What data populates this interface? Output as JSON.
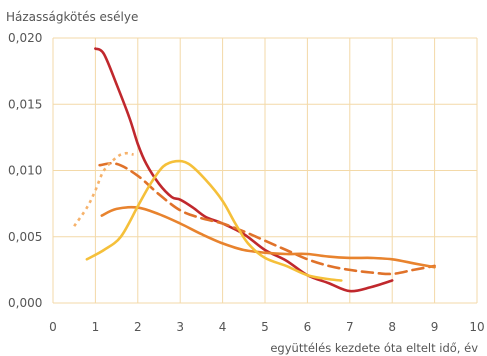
{
  "chart_data": {
    "type": "line",
    "title": "",
    "ylabel": "Házasságkötés esélye",
    "xlabel": "együttélés kezdete óta eltelt idő, év",
    "xlim": [
      0,
      10
    ],
    "ylim": [
      0,
      0.02
    ],
    "x_ticks": [
      0,
      1,
      2,
      3,
      4,
      5,
      6,
      7,
      8,
      9,
      10
    ],
    "y_ticks": [
      0,
      0.005,
      0.01,
      0.015,
      0.02
    ],
    "x_tick_labels": [
      "0",
      "1",
      "2",
      "3",
      "4",
      "5",
      "6",
      "7",
      "8",
      "9",
      "10"
    ],
    "y_tick_labels": [
      "0,000",
      "0,005",
      "0,010",
      "0,015",
      "0,020"
    ],
    "grid": {
      "vertical": true,
      "horizontal": true
    },
    "legend": "none",
    "series": [
      {
        "color": "#c0282d",
        "style": "solid",
        "points": [
          [
            1.0,
            0.0192
          ],
          [
            1.2,
            0.0188
          ],
          [
            1.5,
            0.0165
          ],
          [
            1.8,
            0.014
          ],
          [
            2.0,
            0.012
          ],
          [
            2.2,
            0.0105
          ],
          [
            2.5,
            0.009
          ],
          [
            2.8,
            0.008
          ],
          [
            3.0,
            0.0078
          ],
          [
            3.3,
            0.0072
          ],
          [
            3.6,
            0.0065
          ],
          [
            4.0,
            0.006
          ],
          [
            4.5,
            0.0052
          ],
          [
            5.0,
            0.004
          ],
          [
            5.5,
            0.0032
          ],
          [
            6.0,
            0.0021
          ],
          [
            6.5,
            0.0015
          ],
          [
            7.0,
            0.0009
          ],
          [
            7.5,
            0.0012
          ],
          [
            8.0,
            0.0017
          ]
        ]
      },
      {
        "color": "#e0722a",
        "style": "dashed",
        "points": [
          [
            1.1,
            0.0104
          ],
          [
            1.5,
            0.0105
          ],
          [
            2.0,
            0.0096
          ],
          [
            2.5,
            0.0082
          ],
          [
            3.0,
            0.007
          ],
          [
            3.5,
            0.0064
          ],
          [
            4.0,
            0.006
          ],
          [
            4.5,
            0.0054
          ],
          [
            5.0,
            0.0047
          ],
          [
            5.5,
            0.004
          ],
          [
            6.0,
            0.0033
          ],
          [
            6.5,
            0.0028
          ],
          [
            7.0,
            0.0025
          ],
          [
            7.5,
            0.0023
          ],
          [
            8.0,
            0.0022
          ],
          [
            8.5,
            0.0025
          ],
          [
            9.0,
            0.0028
          ]
        ]
      },
      {
        "color": "#e8832e",
        "style": "solid",
        "points": [
          [
            1.15,
            0.0066
          ],
          [
            1.5,
            0.0071
          ],
          [
            2.0,
            0.0072
          ],
          [
            2.5,
            0.0067
          ],
          [
            3.0,
            0.006
          ],
          [
            3.5,
            0.0052
          ],
          [
            4.0,
            0.0045
          ],
          [
            4.5,
            0.004
          ],
          [
            5.0,
            0.0038
          ],
          [
            5.5,
            0.0037
          ],
          [
            6.0,
            0.0037
          ],
          [
            6.5,
            0.0035
          ],
          [
            7.0,
            0.0034
          ],
          [
            7.5,
            0.0034
          ],
          [
            8.0,
            0.0033
          ],
          [
            8.5,
            0.003
          ],
          [
            9.0,
            0.0027
          ]
        ]
      },
      {
        "color": "#f5c03a",
        "style": "solid",
        "points": [
          [
            0.8,
            0.0033
          ],
          [
            1.2,
            0.004
          ],
          [
            1.6,
            0.005
          ],
          [
            2.0,
            0.0073
          ],
          [
            2.3,
            0.009
          ],
          [
            2.6,
            0.0103
          ],
          [
            2.9,
            0.0107
          ],
          [
            3.2,
            0.0105
          ],
          [
            3.6,
            0.0093
          ],
          [
            4.0,
            0.0077
          ],
          [
            4.3,
            0.006
          ],
          [
            4.6,
            0.0045
          ],
          [
            5.0,
            0.0034
          ],
          [
            5.5,
            0.0028
          ],
          [
            6.0,
            0.0021
          ],
          [
            6.5,
            0.0018
          ],
          [
            6.8,
            0.0017
          ]
        ]
      },
      {
        "color": "#f6b26b",
        "style": "dotted",
        "points": [
          [
            0.5,
            0.0058
          ],
          [
            0.8,
            0.0072
          ],
          [
            1.0,
            0.0085
          ],
          [
            1.2,
            0.01
          ],
          [
            1.5,
            0.011
          ],
          [
            1.7,
            0.0113
          ],
          [
            1.9,
            0.0112
          ]
        ]
      }
    ]
  }
}
